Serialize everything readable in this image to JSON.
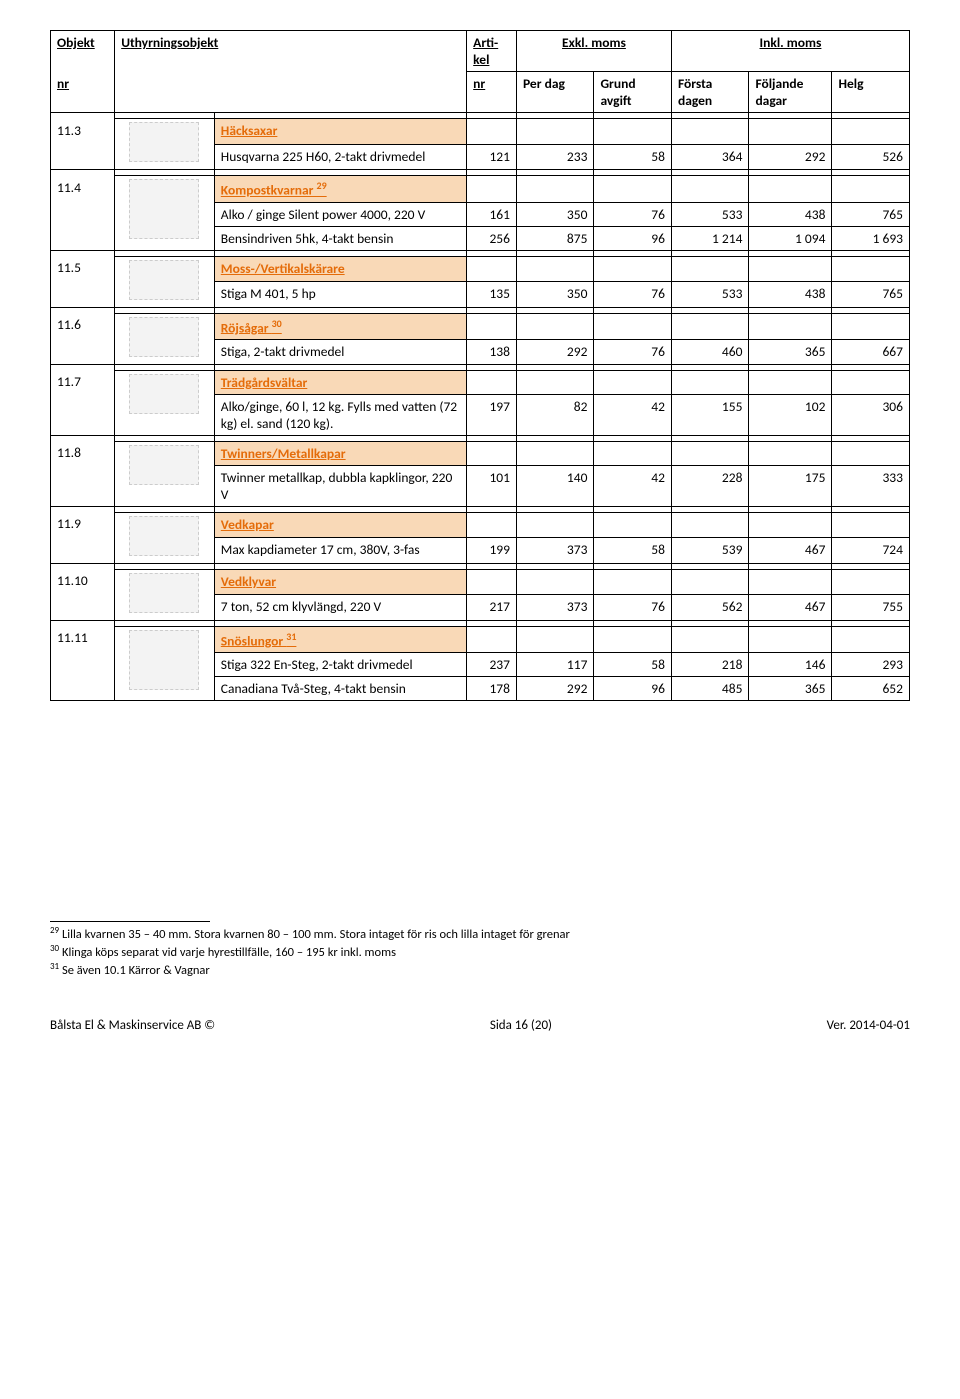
{
  "colors": {
    "category_bg": "#f9d9b7",
    "category_text": "#e46c0a",
    "border": "#000000",
    "background": "#ffffff"
  },
  "header": {
    "objekt": "Objekt",
    "nr": "nr",
    "uthyrningsobjekt": "Uthyrningsobjekt",
    "artikel": "Arti-kel",
    "artikel_nr": "nr",
    "exkl": "Exkl. moms",
    "inkl": "Inkl. moms",
    "per_dag": "Per dag",
    "grund_avgift": "Grund avgift",
    "forsta_dagen": "Första dagen",
    "foljande_dagar": "Följande dagar",
    "helg": "Helg"
  },
  "sections": [
    {
      "objnr": "11.3",
      "category": "Häcksaxar",
      "rows": [
        {
          "desc": "Husqvarna 225 H60, 2-takt drivmedel",
          "art": "121",
          "pd": "233",
          "ga": "58",
          "fd": "364",
          "fod": "292",
          "hg": "526"
        }
      ]
    },
    {
      "objnr": "11.4",
      "category": "Kompostkvarnar",
      "sup": "29",
      "rows": [
        {
          "desc": "Alko / ginge Silent power 4000, 220 V",
          "art": "161",
          "pd": "350",
          "ga": "76",
          "fd": "533",
          "fod": "438",
          "hg": "765"
        },
        {
          "desc": "Bensindriven 5hk, 4-takt bensin",
          "art": "256",
          "pd": "875",
          "ga": "96",
          "fd": "1 214",
          "fod": "1 094",
          "hg": "1 693"
        }
      ]
    },
    {
      "objnr": "11.5",
      "category": "Moss-/Vertikalskärare",
      "rows": [
        {
          "desc": "Stiga M 401, 5 hp",
          "art": "135",
          "pd": "350",
          "ga": "76",
          "fd": "533",
          "fod": "438",
          "hg": "765"
        }
      ]
    },
    {
      "objnr": "11.6",
      "category": "Röjsågar",
      "sup": "30",
      "rows": [
        {
          "desc": "Stiga, 2-takt drivmedel",
          "art": "138",
          "pd": "292",
          "ga": "76",
          "fd": "460",
          "fod": "365",
          "hg": "667"
        }
      ]
    },
    {
      "objnr": "11.7",
      "category": "Trädgårdsvältar",
      "rows": [
        {
          "desc": "Alko/ginge, 60 l, 12 kg. Fylls med vatten (72 kg) el. sand (120 kg).",
          "art": "197",
          "pd": "82",
          "ga": "42",
          "fd": "155",
          "fod": "102",
          "hg": "306"
        }
      ]
    },
    {
      "objnr": "11.8",
      "category": "Twinners/Metallkapar",
      "rows": [
        {
          "desc": "Twinner metallkap, dubbla kapklingor, 220 V",
          "art": "101",
          "pd": "140",
          "ga": "42",
          "fd": "228",
          "fod": "175",
          "hg": "333"
        }
      ]
    },
    {
      "objnr": "11.9",
      "category": "Vedkapar",
      "rows": [
        {
          "desc": "Max kapdiameter 17 cm, 380V, 3-fas",
          "art": "199",
          "pd": "373",
          "ga": "58",
          "fd": "539",
          "fod": "467",
          "hg": "724"
        }
      ]
    },
    {
      "objnr": "11.10",
      "category": "Vedklyvar",
      "rows": [
        {
          "desc": "7 ton, 52 cm klyvlängd, 220 V",
          "art": "217",
          "pd": "373",
          "ga": "76",
          "fd": "562",
          "fod": "467",
          "hg": "755"
        }
      ]
    },
    {
      "objnr": "11.11",
      "category": "Snöslungor",
      "sup": "31",
      "rows": [
        {
          "desc": "Stiga 322 En-Steg, 2-takt drivmedel",
          "art": "237",
          "pd": "117",
          "ga": "58",
          "fd": "218",
          "fod": "146",
          "hg": "293"
        },
        {
          "desc": "Canadiana Två-Steg, 4-takt bensin",
          "art": "178",
          "pd": "292",
          "ga": "96",
          "fd": "485",
          "fod": "365",
          "hg": "652"
        }
      ]
    }
  ],
  "footnotes": [
    {
      "num": "29",
      "text": "Lilla kvarnen 35 – 40 mm. Stora kvarnen 80 – 100 mm. Stora intaget för ris och lilla intaget för grenar"
    },
    {
      "num": "30",
      "text": "Klinga köps separat vid varje hyrestillfälle, 160 – 195 kr inkl. moms"
    },
    {
      "num": "31",
      "text": "Se även 10.1 Kärror & Vagnar"
    }
  ],
  "footer": {
    "left": "Bålsta El & Maskinservice AB ©",
    "center": "Sida 16 (20)",
    "right": "Ver. 2014-04-01"
  }
}
